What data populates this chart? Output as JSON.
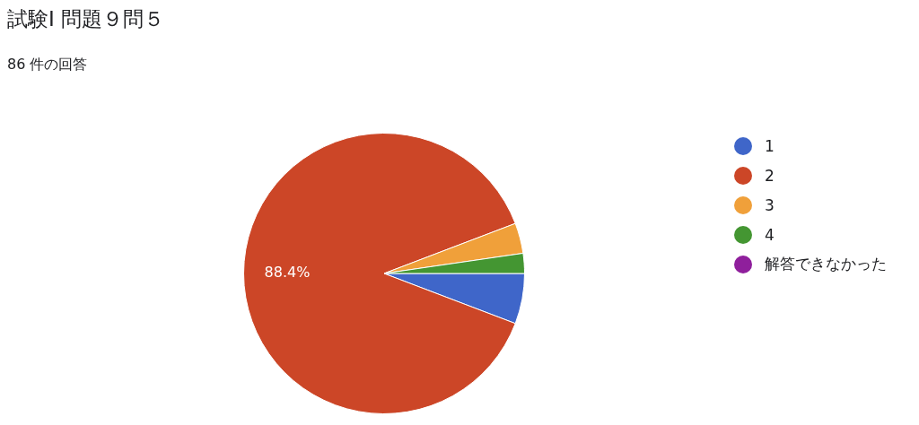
{
  "chart_data": {
    "type": "pie",
    "title": "試験Ⅰ 問題９問５",
    "subtitle": "86 件の回答",
    "categories": [
      "1",
      "2",
      "3",
      "4",
      "解答できなかった"
    ],
    "values": [
      5.8,
      88.4,
      3.5,
      2.3,
      0
    ],
    "colors": [
      "#3f66c9",
      "#cc4627",
      "#f0a03a",
      "#449632",
      "#8f1f9c"
    ],
    "value_labels": [
      null,
      "88.4%",
      null,
      null,
      null
    ],
    "legend": "right"
  }
}
